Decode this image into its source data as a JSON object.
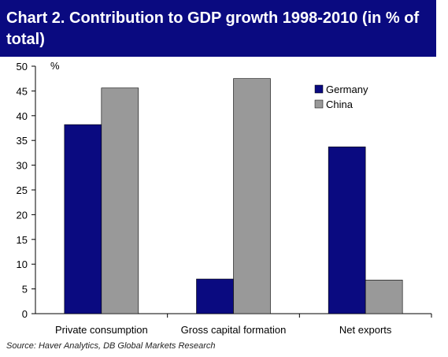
{
  "header": {
    "title": "Chart 2. Contribution to GDP growth 1998-2010 (in % of total)"
  },
  "source": "Source: Haver Analytics, DB Global Markets Research",
  "colors": {
    "title_bg": "#0a0a80",
    "germany": "#0a0a80",
    "china": "#999999"
  },
  "chart_data": {
    "type": "bar",
    "categories": [
      "Private consumption",
      "Gross capital formation",
      "Net exports"
    ],
    "series": [
      {
        "name": "Germany",
        "values": [
          38.2,
          7.0,
          33.7
        ]
      },
      {
        "name": "China",
        "values": [
          45.6,
          47.5,
          6.8
        ]
      }
    ],
    "ylabel": "%",
    "ylim": [
      0,
      50
    ],
    "yticks": [
      "0",
      "5",
      "10",
      "15",
      "20",
      "25",
      "30",
      "35",
      "40",
      "45",
      "50"
    ],
    "grid": false,
    "legend_position": "top-right"
  }
}
